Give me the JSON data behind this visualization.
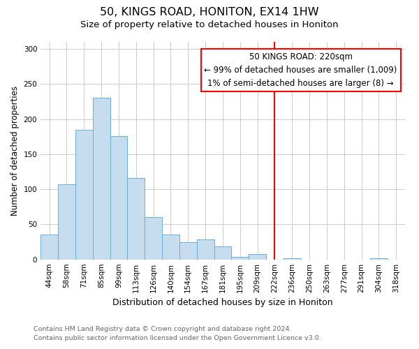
{
  "title": "50, KINGS ROAD, HONITON, EX14 1HW",
  "subtitle": "Size of property relative to detached houses in Honiton",
  "xlabel": "Distribution of detached houses by size in Honiton",
  "ylabel": "Number of detached properties",
  "bar_labels": [
    "44sqm",
    "58sqm",
    "71sqm",
    "85sqm",
    "99sqm",
    "113sqm",
    "126sqm",
    "140sqm",
    "154sqm",
    "167sqm",
    "181sqm",
    "195sqm",
    "209sqm",
    "222sqm",
    "236sqm",
    "250sqm",
    "263sqm",
    "277sqm",
    "291sqm",
    "304sqm",
    "318sqm"
  ],
  "bar_heights": [
    35,
    107,
    185,
    230,
    176,
    116,
    60,
    35,
    25,
    29,
    19,
    4,
    8,
    0,
    2,
    0,
    0,
    0,
    0,
    2,
    0
  ],
  "bar_color": "#c6ddf0",
  "bar_edge_color": "#6aaed6",
  "vline_color": "red",
  "annotation_title": "50 KINGS ROAD: 220sqm",
  "annotation_line1": "← 99% of detached houses are smaller (1,009)",
  "annotation_line2": "1% of semi-detached houses are larger (8) →",
  "annotation_box_color": "white",
  "annotation_box_edge_color": "red",
  "ylim": [
    0,
    310
  ],
  "yticks": [
    0,
    50,
    100,
    150,
    200,
    250,
    300
  ],
  "footer_line1": "Contains HM Land Registry data © Crown copyright and database right 2024.",
  "footer_line2": "Contains public sector information licensed under the Open Government Licence v3.0.",
  "title_fontsize": 11.5,
  "subtitle_fontsize": 9.5,
  "xlabel_fontsize": 9,
  "ylabel_fontsize": 8.5,
  "tick_fontsize": 7.5,
  "footer_fontsize": 6.8,
  "annotation_fontsize": 8.5,
  "fig_bg_color": "#ffffff",
  "grid_color": "#cccccc"
}
